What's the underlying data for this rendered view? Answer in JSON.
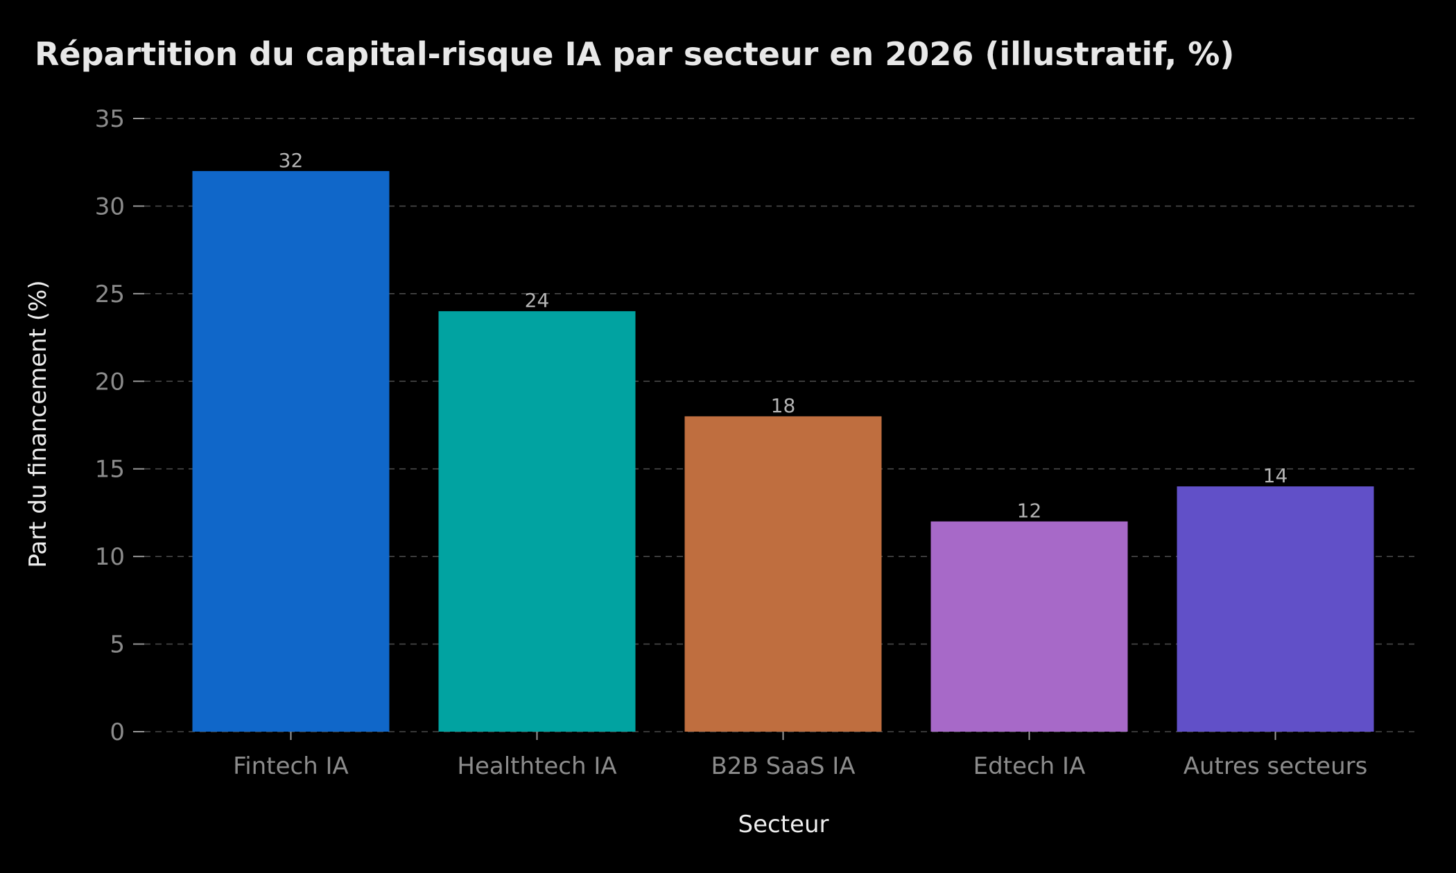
{
  "colors": {
    "background": "#000000",
    "title": "#e8e8e8",
    "axis_label": "#eeeeee",
    "tick_label": "#8c8c8c",
    "data_label": "#b4b4b4",
    "grid": "#4a4a4a",
    "axis_tick": "#9a9a9a"
  },
  "chart_data": {
    "type": "bar",
    "title": "Répartition du capital-risque IA par secteur en 2026 (illustratif, %)",
    "xlabel": "Secteur",
    "ylabel": "Part du financement (%)",
    "categories": [
      "Fintech IA",
      "Healthtech IA",
      "B2B SaaS IA",
      "Edtech IA",
      "Autres secteurs"
    ],
    "values": [
      32,
      24,
      18,
      12,
      14
    ],
    "bar_colors": [
      "#1067c9",
      "#01a3a1",
      "#bf6e3f",
      "#a769c8",
      "#6150c8"
    ],
    "ylim": [
      0,
      35
    ],
    "yticks": [
      0,
      5,
      10,
      15,
      20,
      25,
      30,
      35
    ],
    "grid": true,
    "grid_axis": "y",
    "grid_style": "dashed",
    "show_data_labels": true,
    "legend": "none"
  }
}
